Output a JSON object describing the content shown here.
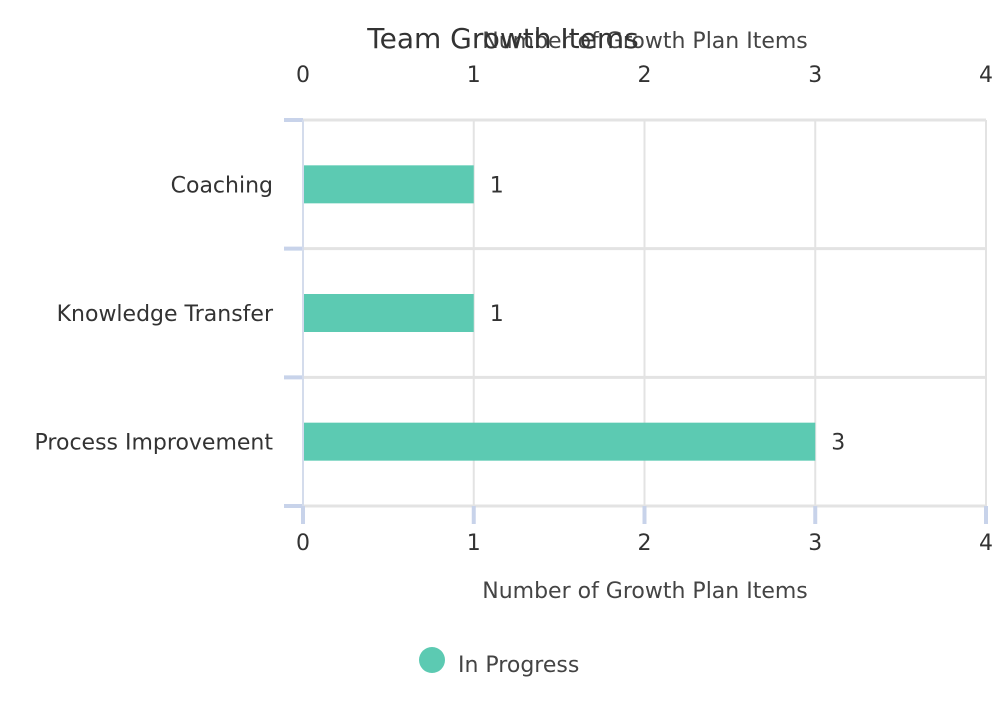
{
  "chart_data": {
    "type": "bar",
    "orientation": "horizontal",
    "title": "Team Growth Items",
    "xlabel": "Number of Growth Plan Items",
    "x2label": "Number of Growth Plan Items",
    "ylabel": "",
    "categories": [
      "Coaching",
      "Knowledge Transfer",
      "Process Improvement"
    ],
    "series": [
      {
        "name": "In Progress",
        "color": "#5ccab2",
        "values": [
          1,
          1,
          3
        ]
      }
    ],
    "xlim": [
      0,
      4
    ],
    "ticks": [
      "0",
      "1",
      "2",
      "3",
      "4"
    ],
    "grid": true,
    "data_labels": true,
    "legend": "bottom-center",
    "colors": {
      "grid": "#e3e3e3",
      "band_line": "#e3e3e3",
      "axis_tick": "#c8d3ea",
      "axis_line": "#d4dcec"
    }
  }
}
